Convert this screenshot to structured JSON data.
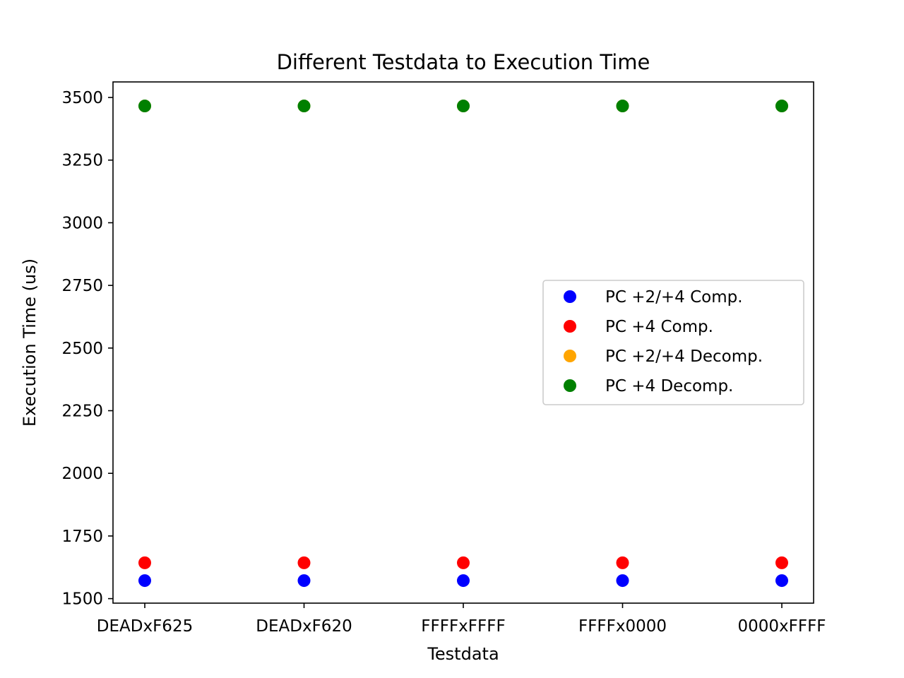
{
  "chart_data": {
    "type": "scatter",
    "title": "Different Testdata to Execution Time",
    "xlabel": "Testdata",
    "ylabel": "Execution Time (us)",
    "categories": [
      "DEADxF625",
      "DEADxF620",
      "FFFFxFFFF",
      "FFFFx0000",
      "0000xFFFF"
    ],
    "ylim": [
      1482,
      3562
    ],
    "yticks": [
      1500,
      1750,
      2000,
      2250,
      2500,
      2750,
      3000,
      3250,
      3500
    ],
    "legend_position": "center-right",
    "grid": false,
    "series": [
      {
        "name": "PC +2/+4 Comp.",
        "color": "#0000ff",
        "values": [
          1572,
          1572,
          1572,
          1572,
          1572
        ]
      },
      {
        "name": "PC +4 Comp.",
        "color": "#ff0000",
        "values": [
          1643,
          1643,
          1643,
          1643,
          1643
        ]
      },
      {
        "name": "PC +2/+4 Decomp.",
        "color": "#ffa500",
        "values": [
          3466,
          3466,
          3466,
          3466,
          3466
        ]
      },
      {
        "name": "PC +4 Decomp.",
        "color": "#008000",
        "values": [
          3466,
          3466,
          3466,
          3466,
          3466
        ]
      }
    ]
  }
}
